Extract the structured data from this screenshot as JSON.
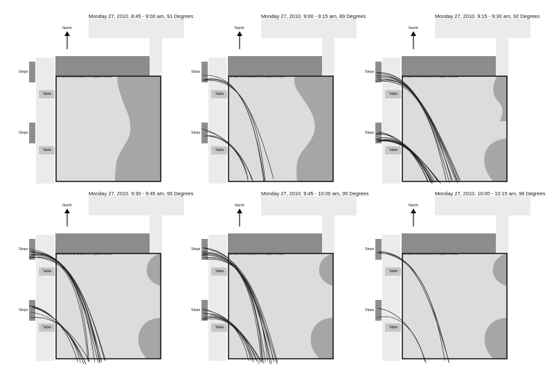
{
  "labels": {
    "north": "North",
    "steps": "Steps",
    "table": "Table",
    "perimeter_note": "The Black line demarcates the X-Square Perimeter"
  },
  "colors": {
    "light_gray": "#ebebec",
    "plaza": "#dcdcde",
    "shade": "#a7a5a7",
    "dark_band": "#8c8b8d",
    "steps": "#8e8d8f",
    "table": "#c7c7c9",
    "perimeter": "#1a1a1a",
    "paths": "#222222"
  },
  "panels": [
    {
      "title": "Monday 27, 2010.  8:45 - 9:00 am, 91 Degrees"
    },
    {
      "title": "Monday 27, 2010.  9:00 - 9:15 am, 89 Degrees"
    },
    {
      "title": "Monday 27, 2010.  9:15 - 9:30 am, 92 Degrees"
    },
    {
      "title": "Monday 27, 2010.  9:30 - 9:45 am, 95 Degrees"
    },
    {
      "title": "Monday 27, 2010.  9:45 - 10:00 am, 95 Degrees"
    },
    {
      "title": "Monday 27, 2010.  10:00 - 10:15 am, 96 Degrees"
    }
  ]
}
